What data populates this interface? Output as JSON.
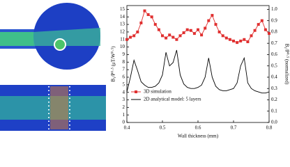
{
  "chart_data": {
    "type": "line",
    "xlabel": "Wall thickness (mm)",
    "ylabel": "B₁/P⁰·⁵ (μT/W⁰·⁵)",
    "y2label": "B₁/P⁰·⁵ (normalized)",
    "x": [
      0.4,
      0.41,
      0.42,
      0.43,
      0.44,
      0.45,
      0.46,
      0.47,
      0.48,
      0.49,
      0.5,
      0.51,
      0.52,
      0.53,
      0.54,
      0.55,
      0.56,
      0.57,
      0.58,
      0.59,
      0.6,
      0.61,
      0.62,
      0.63,
      0.64,
      0.65,
      0.66,
      0.67,
      0.68,
      0.69,
      0.7,
      0.71,
      0.72,
      0.73,
      0.74,
      0.75,
      0.76,
      0.77,
      0.78,
      0.79,
      0.8
    ],
    "series": [
      {
        "name": "3D simulation",
        "color": "#e03030",
        "marker": "square",
        "values": [
          11.0,
          11.3,
          11.5,
          12.0,
          13.2,
          14.8,
          14.3,
          14.0,
          13.0,
          12.3,
          11.5,
          11.2,
          11.6,
          11.3,
          11.0,
          11.5,
          11.9,
          12.3,
          12.2,
          11.8,
          12.3,
          11.6,
          12.5,
          13.5,
          14.2,
          13.0,
          12.0,
          11.5,
          11.2,
          11.0,
          10.8,
          10.6,
          10.8,
          11.0,
          10.7,
          11.5,
          12.2,
          13.0,
          13.5,
          12.3,
          11.8
        ]
      },
      {
        "name": "2D analytical model: 5 layers",
        "color": "#000000",
        "axis": "y2",
        "values": [
          0.27,
          0.4,
          0.55,
          0.46,
          0.36,
          0.33,
          0.31,
          0.31,
          0.32,
          0.35,
          0.42,
          0.62,
          0.5,
          0.53,
          0.64,
          0.42,
          0.34,
          0.31,
          0.3,
          0.3,
          0.31,
          0.33,
          0.4,
          0.57,
          0.4,
          0.32,
          0.29,
          0.28,
          0.28,
          0.29,
          0.3,
          0.35,
          0.5,
          0.57,
          0.35,
          0.3,
          0.28,
          0.27,
          0.26,
          0.26,
          0.27
        ]
      }
    ],
    "xlim": [
      0.4,
      0.8
    ],
    "xticks": [
      0.4,
      0.5,
      0.6,
      0.7,
      0.8
    ],
    "ylim": [
      0,
      15.5
    ],
    "yticks": [
      0,
      1,
      2,
      3,
      4,
      5,
      6,
      7,
      8,
      9,
      10,
      11,
      12,
      13,
      14,
      15
    ],
    "y2lim": [
      0,
      1.0333
    ],
    "y2ticks": [
      {
        "value": 0,
        "label": "0.0"
      },
      0.1,
      0.2,
      0.3,
      0.4,
      0.5,
      0.6,
      0.7,
      0.8,
      0.9,
      {
        "value": 1,
        "label": "1.0"
      }
    ],
    "legend": "lower left"
  }
}
